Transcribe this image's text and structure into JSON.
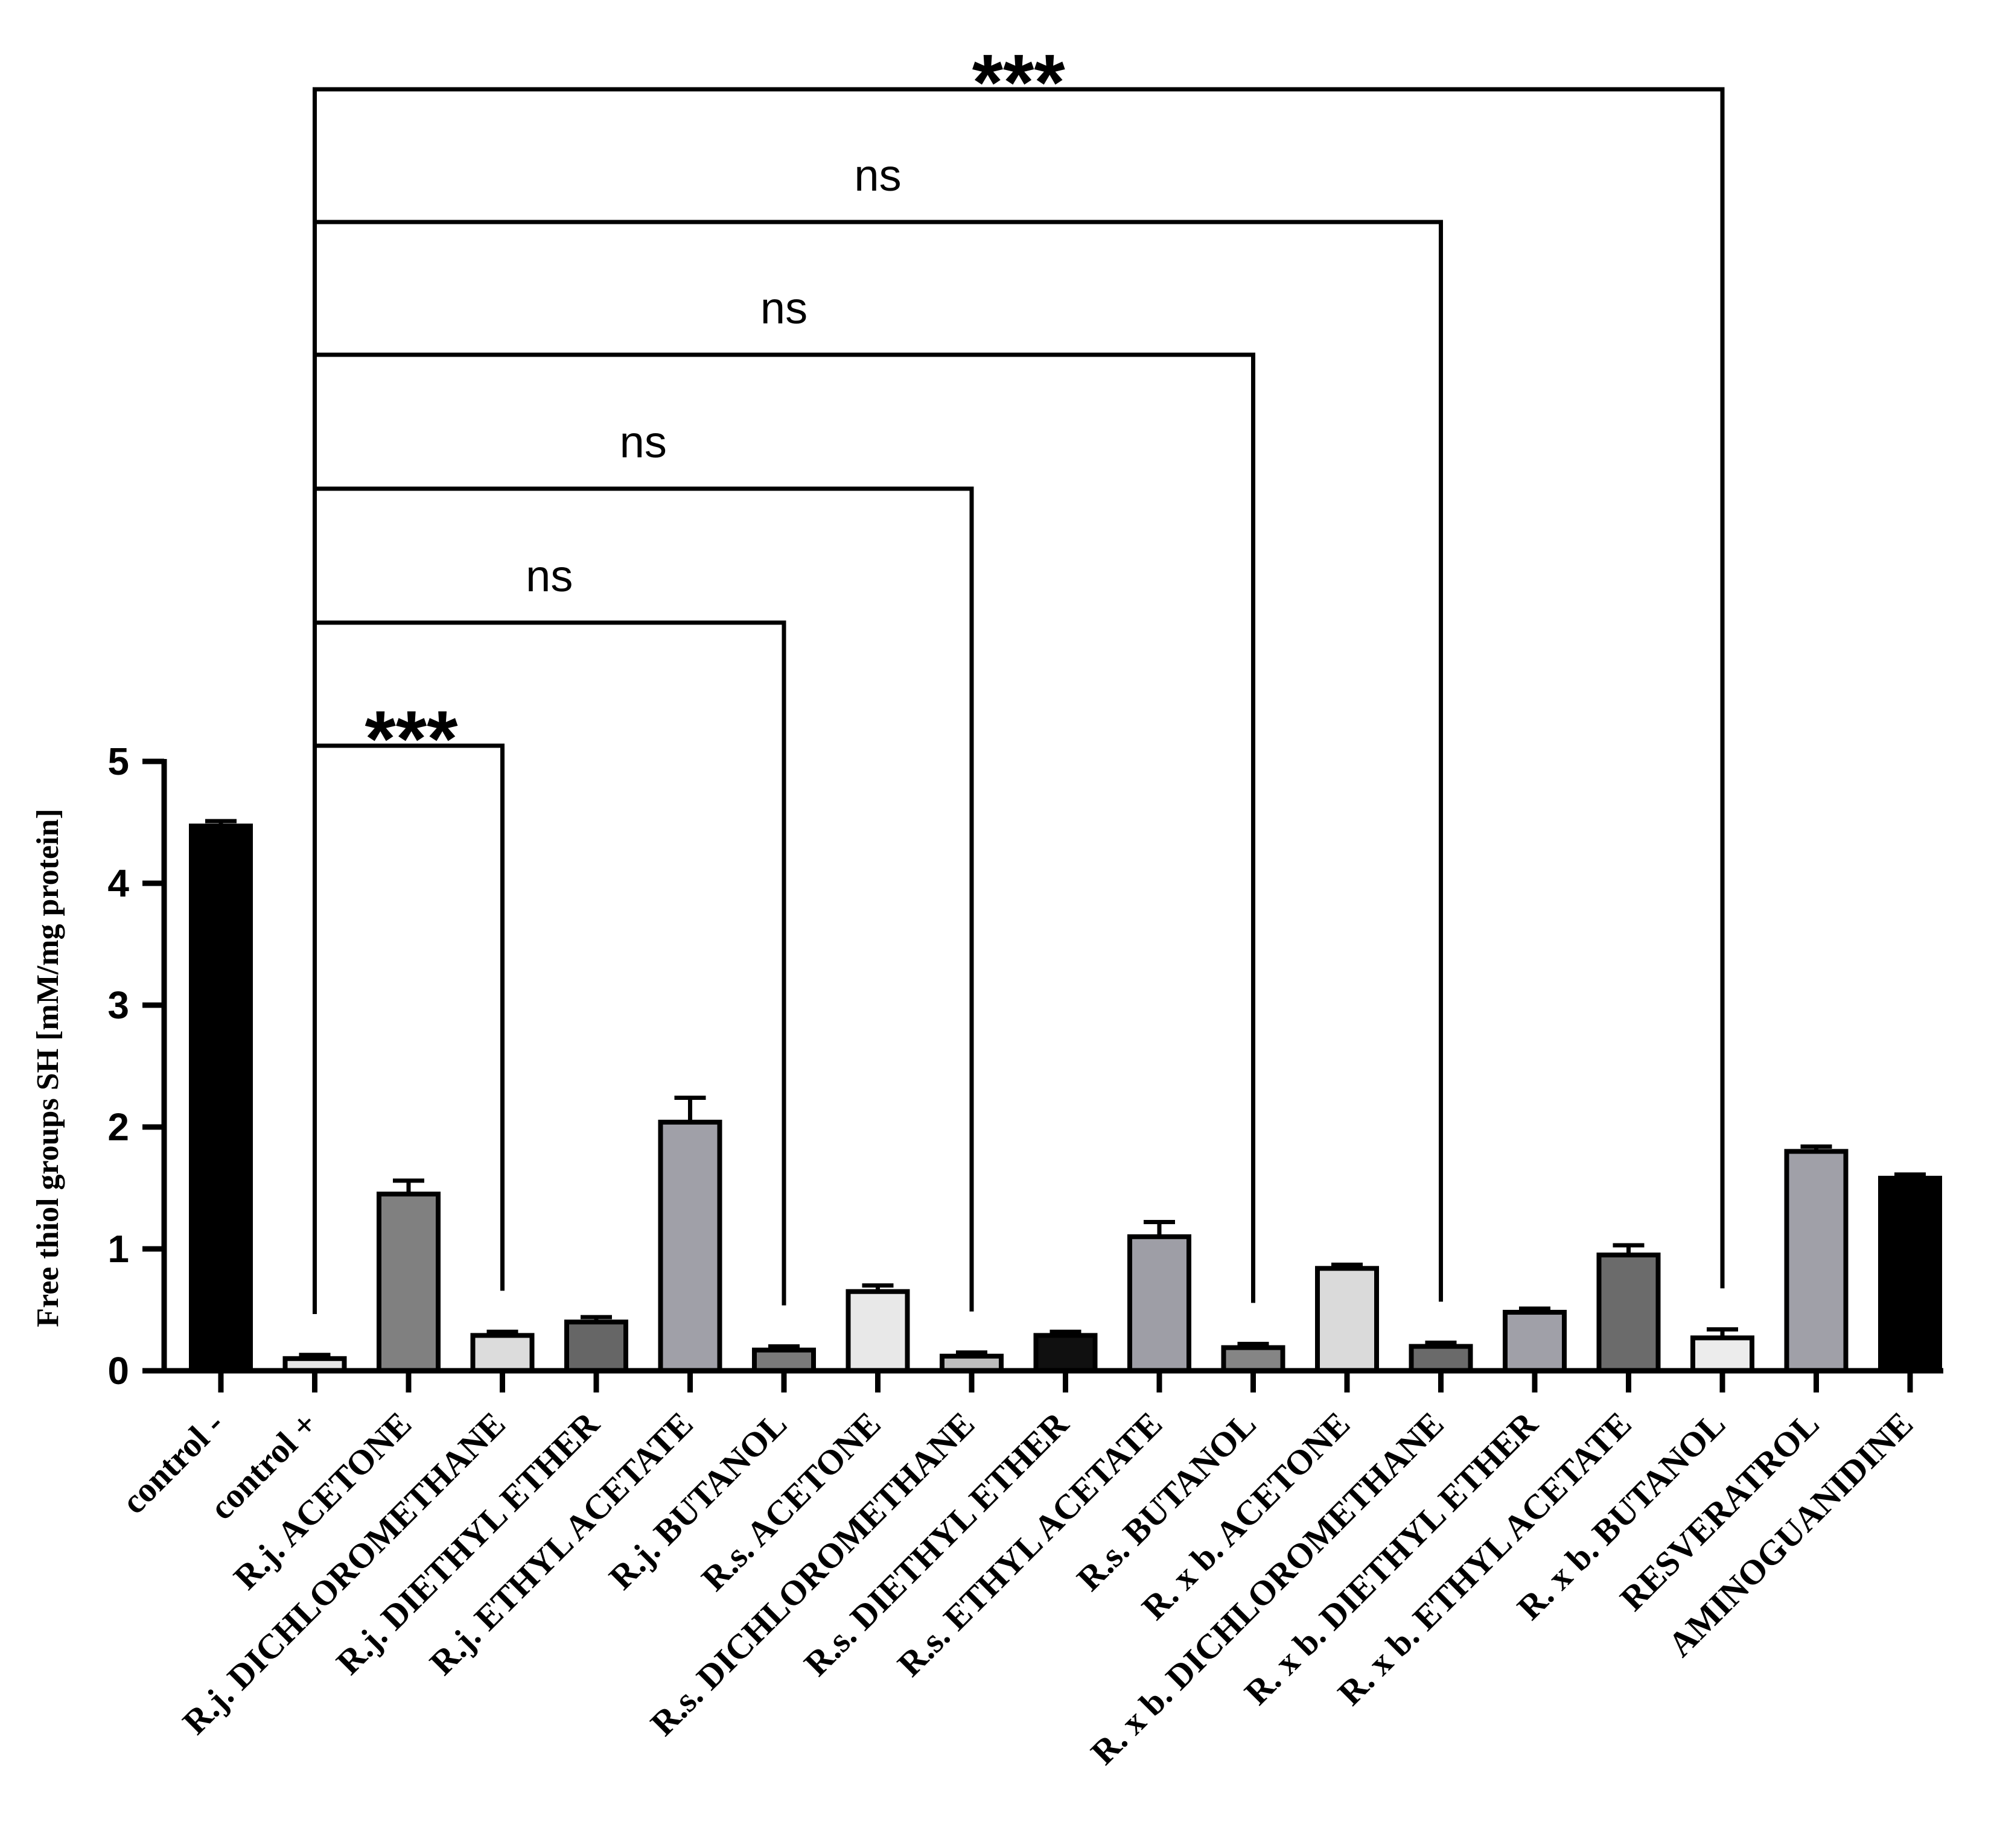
{
  "chart_data": {
    "type": "bar",
    "title": "",
    "xlabel": "",
    "ylabel": "Free thiol groups SH [mM/mg protein]",
    "ylim": [
      0,
      5
    ],
    "yticks": [
      0,
      1,
      2,
      3,
      4,
      5
    ],
    "grid": false,
    "categories": [
      "control -",
      "control +",
      "R.j. ACETONE",
      "R.j. DICHLOROMETHANE",
      "R.j. DIETHYL ETHER",
      "R.j. ETHYL ACETATE",
      "R.j. BUTANOL",
      "R.s. ACETONE",
      "R.s. DICHLOROMETHANE",
      "R.s. DIETHYL ETHER",
      "R.s. ETHYL ACETATE",
      "R.s. BUTANOL",
      "R. x b. ACETONE",
      "R. x b. DICHLOROMETHANE",
      "R. x b.  DIETHYL ETHER",
      "R. x b.  ETHYL ACETATE",
      "R. x b. BUTANOL",
      "RESVERATROL",
      "AMINOGUANIDINE"
    ],
    "values": [
      4.47,
      0.1,
      1.45,
      0.29,
      0.4,
      2.04,
      0.17,
      0.65,
      0.12,
      0.29,
      1.1,
      0.19,
      0.84,
      0.2,
      0.48,
      0.95,
      0.27,
      1.8,
      1.58
    ],
    "errors": [
      0.04,
      0.03,
      0.11,
      0.03,
      0.04,
      0.2,
      0.03,
      0.05,
      0.03,
      0.03,
      0.12,
      0.03,
      0.03,
      0.03,
      0.03,
      0.08,
      0.07,
      0.04,
      0.03
    ],
    "bar_colors": [
      "#000000",
      "#e6e6e6",
      "#808080",
      "#dcdcdc",
      "#666666",
      "#a0a0a8",
      "#7a7a7a",
      "#e8e8e8",
      "#bdbdbd",
      "#101010",
      "#9e9ea6",
      "#858585",
      "#dadada",
      "#6a6a6a",
      "#a0a0a8",
      "#6b6b6b",
      "#ececec",
      "#a0a0a8",
      "#000000"
    ],
    "comparisons": [
      {
        "from": "control +",
        "to": "R.j. DICHLOROMETHANE",
        "label": "***"
      },
      {
        "from": "control +",
        "to": "R.j. BUTANOL",
        "label": "ns"
      },
      {
        "from": "control +",
        "to": "R.s. DICHLOROMETHANE",
        "label": "ns"
      },
      {
        "from": "control +",
        "to": "R.s. BUTANOL",
        "label": "ns"
      },
      {
        "from": "control +",
        "to": "R. x b. DICHLOROMETHANE",
        "label": "ns"
      },
      {
        "from": "control +",
        "to": "R. x b. BUTANOL",
        "label": "***"
      }
    ]
  }
}
